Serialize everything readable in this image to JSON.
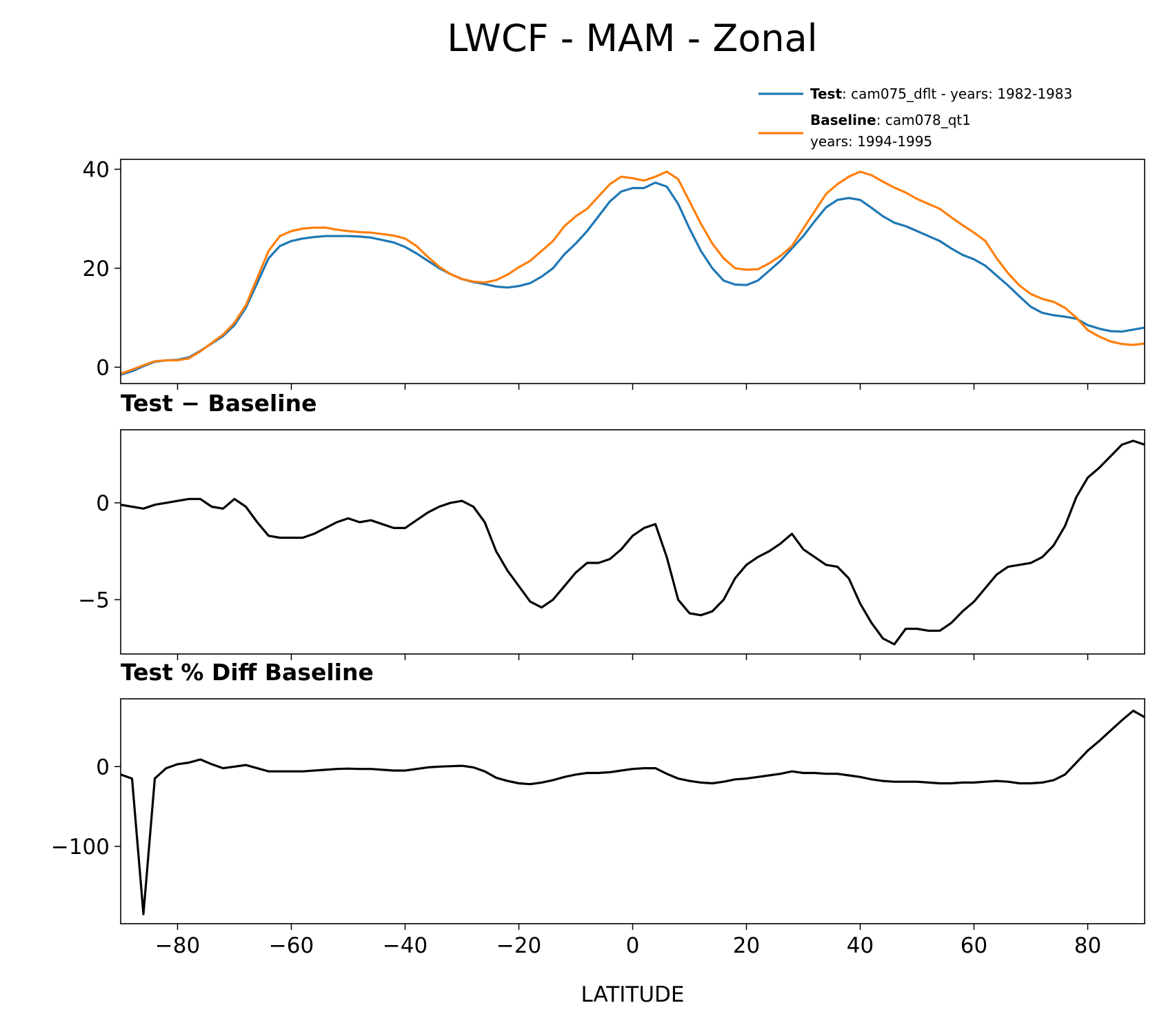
{
  "title": "LWCF - MAM - Zonal",
  "chart_data": [
    {
      "type": "line",
      "legend": "upper right",
      "series": [
        {
          "name": "Test",
          "label": ": cam075_dflt - years: 1982-1983",
          "color": "#1f77b4",
          "values": [
            -1.5,
            -0.8,
            0.2,
            1.1,
            1.4,
            1.5,
            2.0,
            3.3,
            4.8,
            6.3,
            8.5,
            12,
            17,
            22,
            24.5,
            25.5,
            26,
            26.3,
            26.5,
            26.5,
            26.5,
            26.4,
            26.2,
            25.7,
            25.2,
            24.3,
            23,
            21.5,
            20,
            18.8,
            17.8,
            17.2,
            16.8,
            16.3,
            16.1,
            16.4,
            17,
            18.3,
            20,
            22.8,
            25,
            27.5,
            30.5,
            33.5,
            35.5,
            36.2,
            36.2,
            37.3,
            36.5,
            33,
            28,
            23.5,
            20,
            17.5,
            16.7,
            16.6,
            17.5,
            19.5,
            21.5,
            24,
            26.5,
            29.5,
            32.3,
            33.8,
            34.2,
            33.8,
            32.2,
            30.5,
            29.2,
            28.5,
            27.5,
            26.5,
            25.5,
            24,
            22.7,
            21.8,
            20.5,
            18.5,
            16.5,
            14.3,
            12.2,
            11,
            10.5,
            10.2,
            9.8,
            8.5,
            7.8,
            7.3,
            7.2,
            7.6,
            8
          ]
        },
        {
          "name": "Baseline",
          "label": [
            ": cam078_qt1",
            "years: 1994-1995"
          ],
          "color": "#ff7f0e",
          "values": [
            -1.3,
            -0.5,
            0.4,
            1.2,
            1.4,
            1.4,
            1.8,
            3.2,
            4.9,
            6.6,
            9,
            12.5,
            18,
            23.5,
            26.5,
            27.5,
            28,
            28.2,
            28.2,
            27.8,
            27.5,
            27.3,
            27.2,
            26.9,
            26.6,
            26,
            24.5,
            22.3,
            20.3,
            18.8,
            17.8,
            17.3,
            17.1,
            17.6,
            18.7,
            20.2,
            21.5,
            23.5,
            25.5,
            28.5,
            30.5,
            32,
            34.5,
            37,
            38.5,
            38.2,
            37.7,
            38.5,
            39.5,
            38,
            33.5,
            29,
            25,
            22,
            20,
            19.7,
            19.8,
            21,
            22.5,
            24.5,
            28,
            31.5,
            35,
            37,
            38.5,
            39.5,
            38.8,
            37.5,
            36.3,
            35.3,
            34,
            33,
            32,
            30.3,
            28.7,
            27.2,
            25.5,
            22,
            19,
            16.5,
            14.8,
            13.8,
            13.2,
            12,
            10,
            7.5,
            6.2,
            5.2,
            4.7,
            4.5,
            4.8
          ]
        }
      ],
      "x": [
        -90,
        -88,
        -86,
        -84,
        -82,
        -80,
        -78,
        -76,
        -74,
        -72,
        -70,
        -68,
        -66,
        -64,
        -62,
        -60,
        -58,
        -56,
        -54,
        -52,
        -50,
        -48,
        -46,
        -44,
        -42,
        -40,
        -38,
        -36,
        -34,
        -32,
        -30,
        -28,
        -26,
        -24,
        -22,
        -20,
        -18,
        -16,
        -14,
        -12,
        -10,
        -8,
        -6,
        -4,
        -2,
        0,
        2,
        4,
        6,
        8,
        10,
        12,
        14,
        16,
        18,
        20,
        22,
        24,
        26,
        28,
        30,
        32,
        34,
        36,
        38,
        40,
        42,
        44,
        46,
        48,
        50,
        52,
        54,
        56,
        58,
        60,
        62,
        64,
        66,
        68,
        70,
        72,
        74,
        76,
        78,
        80,
        82,
        84,
        86,
        88,
        90
      ],
      "xlim": [
        -90,
        90
      ],
      "xticks": [
        -80,
        -60,
        -40,
        -20,
        0,
        20,
        40,
        60,
        80
      ],
      "ylim": [
        -3.3,
        42
      ],
      "yticks": [
        0,
        20,
        40
      ]
    },
    {
      "type": "line",
      "title": "Test − Baseline",
      "series": [
        {
          "color": "#000000",
          "values": [
            -0.1,
            -0.2,
            -0.3,
            -0.1,
            0,
            0.1,
            0.2,
            0.2,
            -0.2,
            -0.3,
            0.2,
            -0.2,
            -1,
            -1.7,
            -1.8,
            -1.8,
            -1.8,
            -1.6,
            -1.3,
            -1,
            -0.8,
            -1,
            -0.9,
            -1.1,
            -1.3,
            -1.3,
            -0.9,
            -0.5,
            -0.2,
            0,
            0.1,
            -0.2,
            -1,
            -2.5,
            -3.5,
            -4.3,
            -5.1,
            -5.4,
            -5.0,
            -4.3,
            -3.6,
            -3.1,
            -3.1,
            -2.9,
            -2.4,
            -1.7,
            -1.3,
            -1.1,
            -2.8,
            -5.0,
            -5.7,
            -5.8,
            -5.6,
            -5.0,
            -3.9,
            -3.2,
            -2.8,
            -2.5,
            -2.1,
            -1.6,
            -2.4,
            -2.8,
            -3.2,
            -3.3,
            -3.9,
            -5.2,
            -6.2,
            -7.0,
            -7.3,
            -6.5,
            -6.5,
            -6.6,
            -6.6,
            -6.2,
            -5.6,
            -5.1,
            -4.4,
            -3.7,
            -3.3,
            -3.2,
            -3.1,
            -2.8,
            -2.2,
            -1.2,
            0.3,
            1.3,
            1.8,
            2.4,
            3.0,
            3.2,
            3.0
          ]
        }
      ],
      "x": [
        -90,
        -88,
        -86,
        -84,
        -82,
        -80,
        -78,
        -76,
        -74,
        -72,
        -70,
        -68,
        -66,
        -64,
        -62,
        -60,
        -58,
        -56,
        -54,
        -52,
        -50,
        -48,
        -46,
        -44,
        -42,
        -40,
        -38,
        -36,
        -34,
        -32,
        -30,
        -28,
        -26,
        -24,
        -22,
        -20,
        -18,
        -16,
        -14,
        -12,
        -10,
        -8,
        -6,
        -4,
        -2,
        0,
        2,
        4,
        6,
        8,
        10,
        12,
        14,
        16,
        18,
        20,
        22,
        24,
        26,
        28,
        30,
        32,
        34,
        36,
        38,
        40,
        42,
        44,
        46,
        48,
        50,
        52,
        54,
        56,
        58,
        60,
        62,
        64,
        66,
        68,
        70,
        72,
        74,
        76,
        78,
        80,
        82,
        84,
        86,
        88,
        90
      ],
      "xlim": [
        -90,
        90
      ],
      "xticks": [
        -80,
        -60,
        -40,
        -20,
        0,
        20,
        40,
        60,
        80
      ],
      "ylim": [
        -7.8,
        3.77
      ],
      "yticks": [
        0,
        {
          "value": -5,
          "label": "−5"
        }
      ]
    },
    {
      "type": "line",
      "title": "Test % Diff Baseline",
      "xlabel": "LATITUDE",
      "series": [
        {
          "color": "#000000",
          "values": [
            -10,
            -15,
            -185,
            -15,
            -2,
            3,
            5,
            9,
            3,
            -2,
            0,
            2,
            -2,
            -6,
            -6,
            -6,
            -6,
            -5,
            -4,
            -3,
            -2.5,
            -3,
            -3,
            -4,
            -5,
            -5,
            -3,
            -1,
            0,
            0.5,
            1,
            -1,
            -6,
            -14,
            -18,
            -21,
            -22,
            -20,
            -17,
            -13,
            -10,
            -8,
            -8,
            -7,
            -5,
            -3,
            -2,
            -2,
            -9,
            -15,
            -18,
            -20,
            -21,
            -19,
            -16,
            -15,
            -13,
            -11,
            -9,
            -6,
            -8,
            -8,
            -9,
            -9,
            -11,
            -13,
            -16,
            -18,
            -19,
            -19,
            -19,
            -20,
            -21,
            -21,
            -20,
            -20,
            -19,
            -18,
            -19,
            -21,
            -21,
            -20,
            -17,
            -10,
            5,
            20,
            32,
            45,
            58,
            70,
            62
          ]
        }
      ],
      "x": [
        -90,
        -88,
        -86,
        -84,
        -82,
        -80,
        -78,
        -76,
        -74,
        -72,
        -70,
        -68,
        -66,
        -64,
        -62,
        -60,
        -58,
        -56,
        -54,
        -52,
        -50,
        -48,
        -46,
        -44,
        -42,
        -40,
        -38,
        -36,
        -34,
        -32,
        -30,
        -28,
        -26,
        -24,
        -22,
        -20,
        -18,
        -16,
        -14,
        -12,
        -10,
        -8,
        -6,
        -4,
        -2,
        0,
        2,
        4,
        6,
        8,
        10,
        12,
        14,
        16,
        18,
        20,
        22,
        24,
        26,
        28,
        30,
        32,
        34,
        36,
        38,
        40,
        42,
        44,
        46,
        48,
        50,
        52,
        54,
        56,
        58,
        60,
        62,
        64,
        66,
        68,
        70,
        72,
        74,
        76,
        78,
        80,
        82,
        84,
        86,
        88,
        90
      ],
      "xlim": [
        -90,
        90
      ],
      "xticks": [
        {
          "value": -80,
          "label": "−80"
        },
        {
          "value": -60,
          "label": "−60"
        },
        {
          "value": -40,
          "label": "−40"
        },
        {
          "value": -20,
          "label": "−20"
        },
        0,
        20,
        40,
        60,
        80
      ],
      "ylim": [
        -197,
        85
      ],
      "yticks": [
        0,
        {
          "value": -100,
          "label": "−100"
        }
      ]
    }
  ]
}
